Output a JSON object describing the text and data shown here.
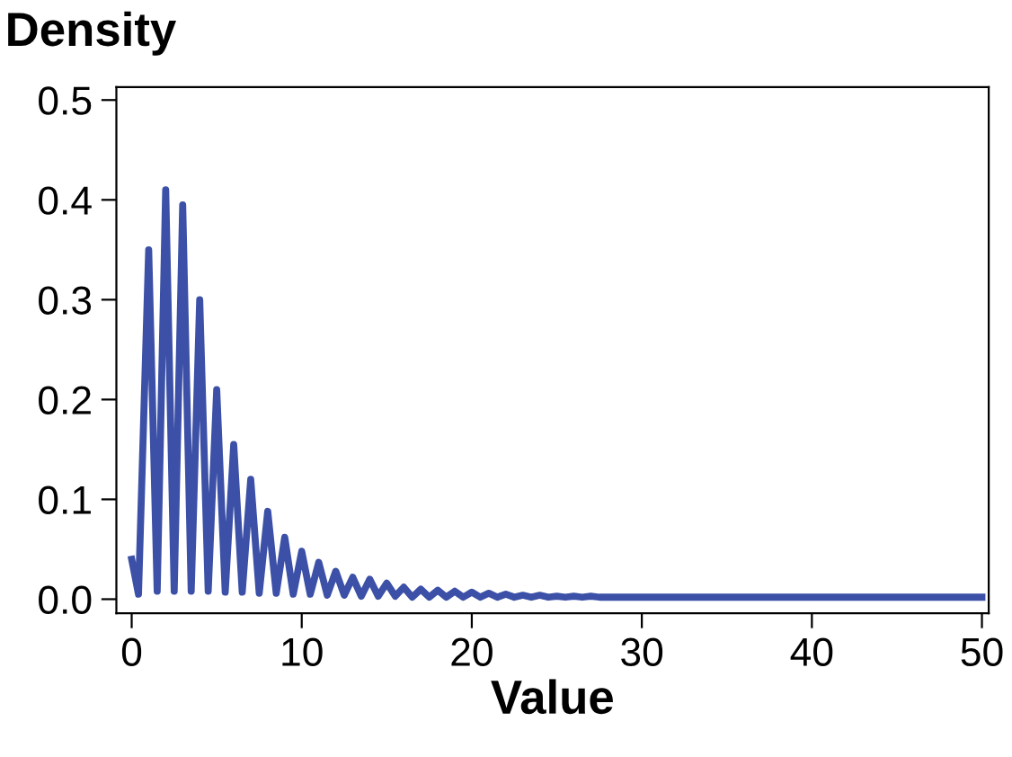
{
  "chart_data": {
    "type": "line",
    "ylabel": "Density",
    "xlabel": "Value",
    "xlim": [
      -0.9,
      50.4
    ],
    "xticks": [
      0,
      10,
      20,
      30,
      40,
      50
    ],
    "ylim": [
      -0.014,
      0.513
    ],
    "yticks": [
      {
        "value": 0,
        "label": "0.0"
      },
      0.1,
      0.2,
      0.3,
      0.4,
      0.5
    ],
    "grid": false,
    "marker": "none",
    "line_style": "solid",
    "series": [
      {
        "color": "#3b50a6",
        "x": [
          0,
          0.4,
          1,
          1.5,
          2,
          2.5,
          3,
          3.5,
          4,
          4.5,
          5,
          5.5,
          6,
          6.5,
          7,
          7.5,
          8,
          8.5,
          9,
          9.5,
          10,
          10.5,
          11,
          11.5,
          12,
          12.5,
          13,
          13.5,
          14,
          14.5,
          15,
          15.5,
          16,
          16.5,
          17,
          17.5,
          18,
          18.5,
          19,
          19.5,
          20,
          20.5,
          21,
          21.5,
          22,
          22.5,
          23,
          23.5,
          24,
          24.5,
          25,
          25.5,
          26,
          26.5,
          27,
          27.5,
          28,
          29,
          30,
          35,
          40,
          45,
          50
        ],
        "values": [
          0.04,
          0.005,
          0.35,
          0.008,
          0.41,
          0.008,
          0.395,
          0.008,
          0.3,
          0.008,
          0.21,
          0.007,
          0.155,
          0.007,
          0.12,
          0.006,
          0.088,
          0.006,
          0.062,
          0.005,
          0.048,
          0.005,
          0.037,
          0.004,
          0.028,
          0.004,
          0.022,
          0.003,
          0.02,
          0.003,
          0.016,
          0.003,
          0.012,
          0.002,
          0.01,
          0.002,
          0.009,
          0.002,
          0.008,
          0.002,
          0.007,
          0.002,
          0.006,
          0.002,
          0.005,
          0.002,
          0.004,
          0.002,
          0.004,
          0.002,
          0.003,
          0.002,
          0.003,
          0.002,
          0.003,
          0.002,
          0.002,
          0.002,
          0.002,
          0.002,
          0.002,
          0.002,
          0.002
        ]
      }
    ]
  }
}
